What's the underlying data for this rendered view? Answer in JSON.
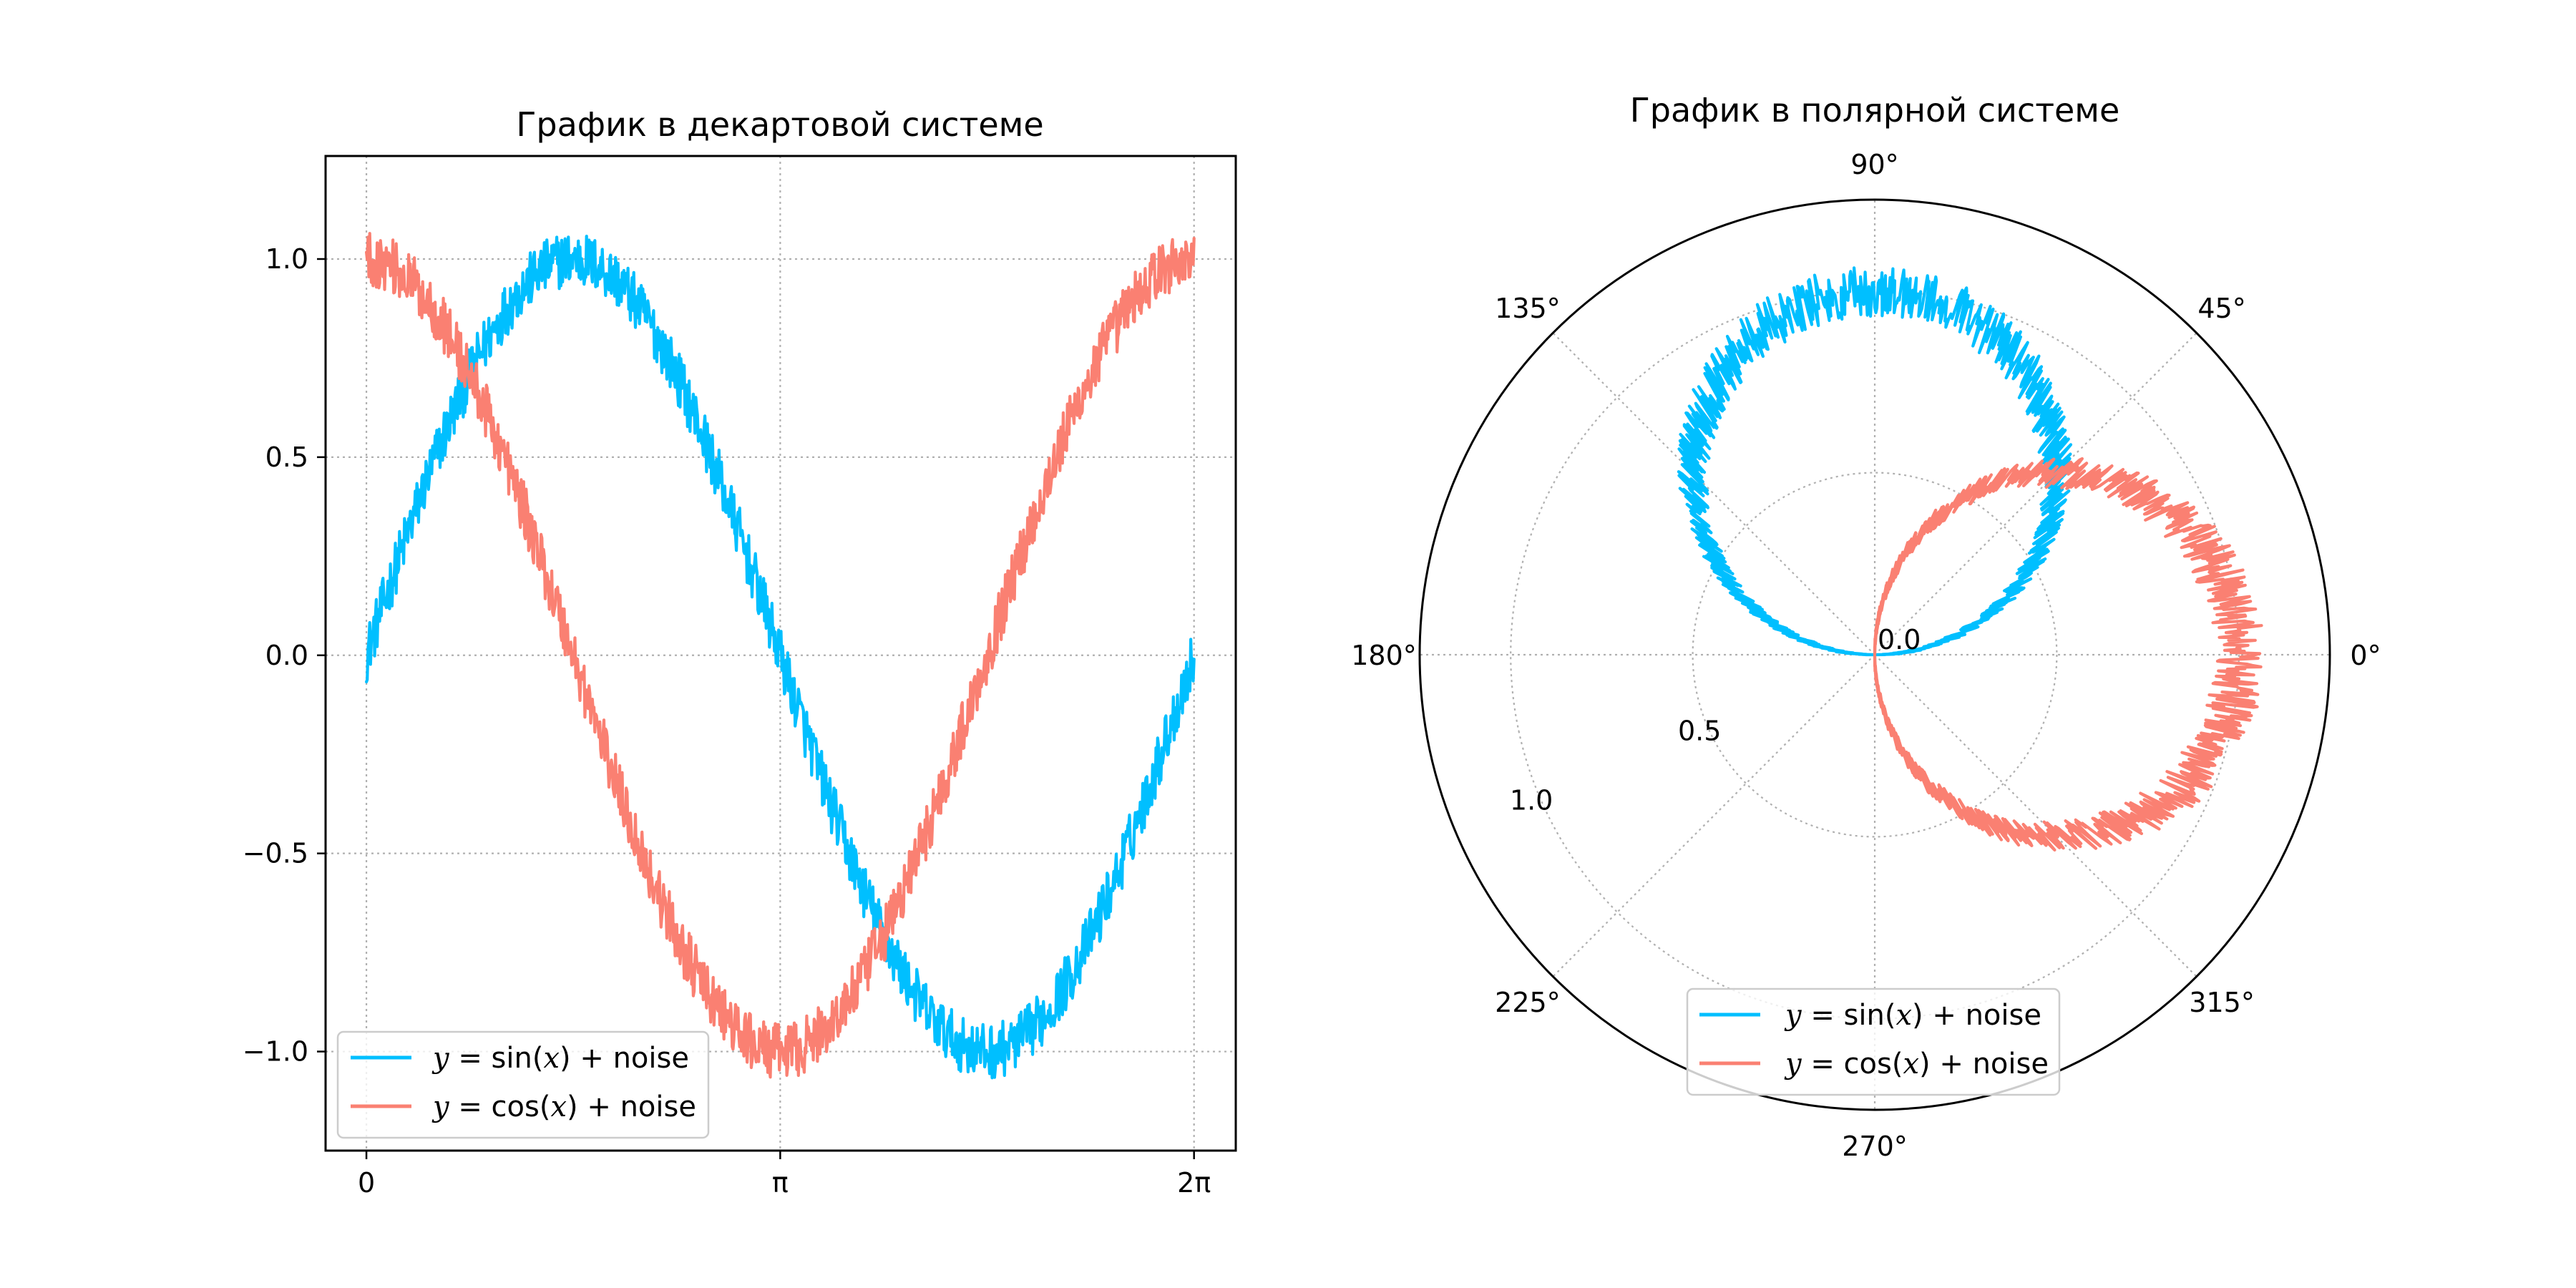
{
  "chart_data": [
    {
      "type": "line",
      "title": "График в декартовой системе",
      "xlabel": "",
      "ylabel": "",
      "x_range": [
        0,
        6.283185307
      ],
      "xlim": [
        -0.31,
        6.6
      ],
      "ylim": [
        -1.25,
        1.26
      ],
      "x_ticks": [
        {
          "value": 0,
          "label": "0"
        },
        {
          "value": 3.14159265,
          "label": "π"
        },
        {
          "value": 6.28318531,
          "label": "2π"
        }
      ],
      "y_ticks": [
        {
          "value": 1.0,
          "label": "1.0"
        },
        {
          "value": 0.5,
          "label": "0.5"
        },
        {
          "value": 0.0,
          "label": "0.0"
        },
        {
          "value": -0.5,
          "label": "−0.5"
        },
        {
          "value": -1.0,
          "label": "−1.0"
        }
      ],
      "grid": true,
      "legend_position": "lower-left",
      "series": [
        {
          "name": "y = sin(x) + noise",
          "function": "sin",
          "noise_amplitude": 0.07,
          "color": "#00bfff",
          "approx_points": [
            [
              0,
              0.0
            ],
            [
              1.5708,
              1.0
            ],
            [
              3.1416,
              0.0
            ],
            [
              4.7124,
              -1.0
            ],
            [
              6.2832,
              0.0
            ]
          ]
        },
        {
          "name": "y = cos(x) + noise",
          "function": "cos",
          "noise_amplitude": 0.07,
          "color": "#fa8072",
          "approx_points": [
            [
              0,
              1.0
            ],
            [
              1.5708,
              0.0
            ],
            [
              3.1416,
              -1.0
            ],
            [
              4.7124,
              0.0
            ],
            [
              6.2832,
              1.0
            ]
          ]
        }
      ]
    },
    {
      "type": "line",
      "title": "График в полярной системе",
      "projection": "polar",
      "r_range": [
        0,
        1.25
      ],
      "r_ticks": [
        {
          "value": 0.0,
          "label": "0.0"
        },
        {
          "value": 0.5,
          "label": "0.5"
        },
        {
          "value": 1.0,
          "label": "1.0"
        }
      ],
      "theta_ticks": [
        {
          "value": 0,
          "label": "0°"
        },
        {
          "value": 45,
          "label": "45°"
        },
        {
          "value": 90,
          "label": "90°"
        },
        {
          "value": 135,
          "label": "135°"
        },
        {
          "value": 180,
          "label": "180°"
        },
        {
          "value": 225,
          "label": "225°"
        },
        {
          "value": 270,
          "label": "270°"
        },
        {
          "value": 315,
          "label": "315°"
        }
      ],
      "grid": true,
      "legend_position": "lower-center",
      "series": [
        {
          "name": "y = sin(x) + noise",
          "function": "sin",
          "noise_amplitude": 0.07,
          "color": "#00bfff",
          "theta_range_deg": [
            0,
            180
          ]
        },
        {
          "name": "y = cos(x) + noise",
          "function": "cos",
          "noise_amplitude": 0.07,
          "color": "#fa8072",
          "theta_range_deg": [
            -90,
            90
          ]
        }
      ]
    }
  ],
  "legend": {
    "sin_prefix": "y",
    "sin_eq": " = sin(",
    "sin_var": "x",
    "sin_suffix": ") + noise",
    "cos_prefix": "y",
    "cos_eq": " = cos(",
    "cos_var": "x",
    "cos_suffix": ") + noise"
  }
}
